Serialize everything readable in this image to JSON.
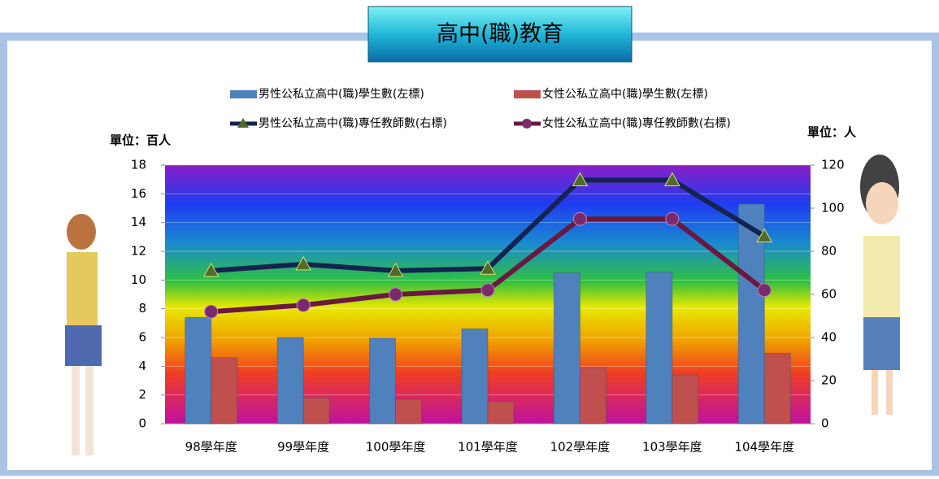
{
  "chart_data": {
    "type": "bar",
    "title": "高中(職)教育",
    "y_unit": "單位：百人",
    "y2_unit": "單位：人",
    "categories": [
      "98學年度",
      "99學年度",
      "100學年度",
      "101學年度",
      "102學年度",
      "103學年度",
      "104學年度"
    ],
    "series": [
      {
        "name": "男性公私立高中(職)學生數(左標)",
        "type": "bar",
        "color": "#4f81bd",
        "values": [
          7.4,
          6.0,
          5.95,
          6.6,
          10.5,
          10.55,
          15.3
        ]
      },
      {
        "name": "女性公私立高中(職)學生數(左標)",
        "type": "bar",
        "color": "#c0504d",
        "values": [
          4.6,
          1.8,
          1.7,
          1.55,
          3.9,
          3.4,
          4.9
        ]
      },
      {
        "name": "男性公私立高中(職)專任教師數(右標)",
        "type": "line",
        "axis": "y2",
        "color": "#14234f",
        "marker": "triangle",
        "marker_color": "#4f6b2a",
        "values": [
          71,
          74,
          71,
          72,
          113,
          113,
          87
        ]
      },
      {
        "name": "女性公私立高中(職)專任教師數(右標)",
        "type": "line",
        "axis": "y2",
        "color": "#6b1840",
        "marker": "circle",
        "marker_color": "#7a2a6a",
        "values": [
          52,
          55,
          60,
          62,
          95,
          95,
          62
        ]
      }
    ],
    "ylim": [
      0,
      18
    ],
    "yticks": [
      0,
      2,
      4,
      6,
      8,
      10,
      12,
      14,
      16,
      18
    ],
    "y2lim": [
      0,
      120
    ],
    "y2ticks": [
      0,
      20,
      40,
      60,
      80,
      100,
      120
    ],
    "grid": true
  }
}
